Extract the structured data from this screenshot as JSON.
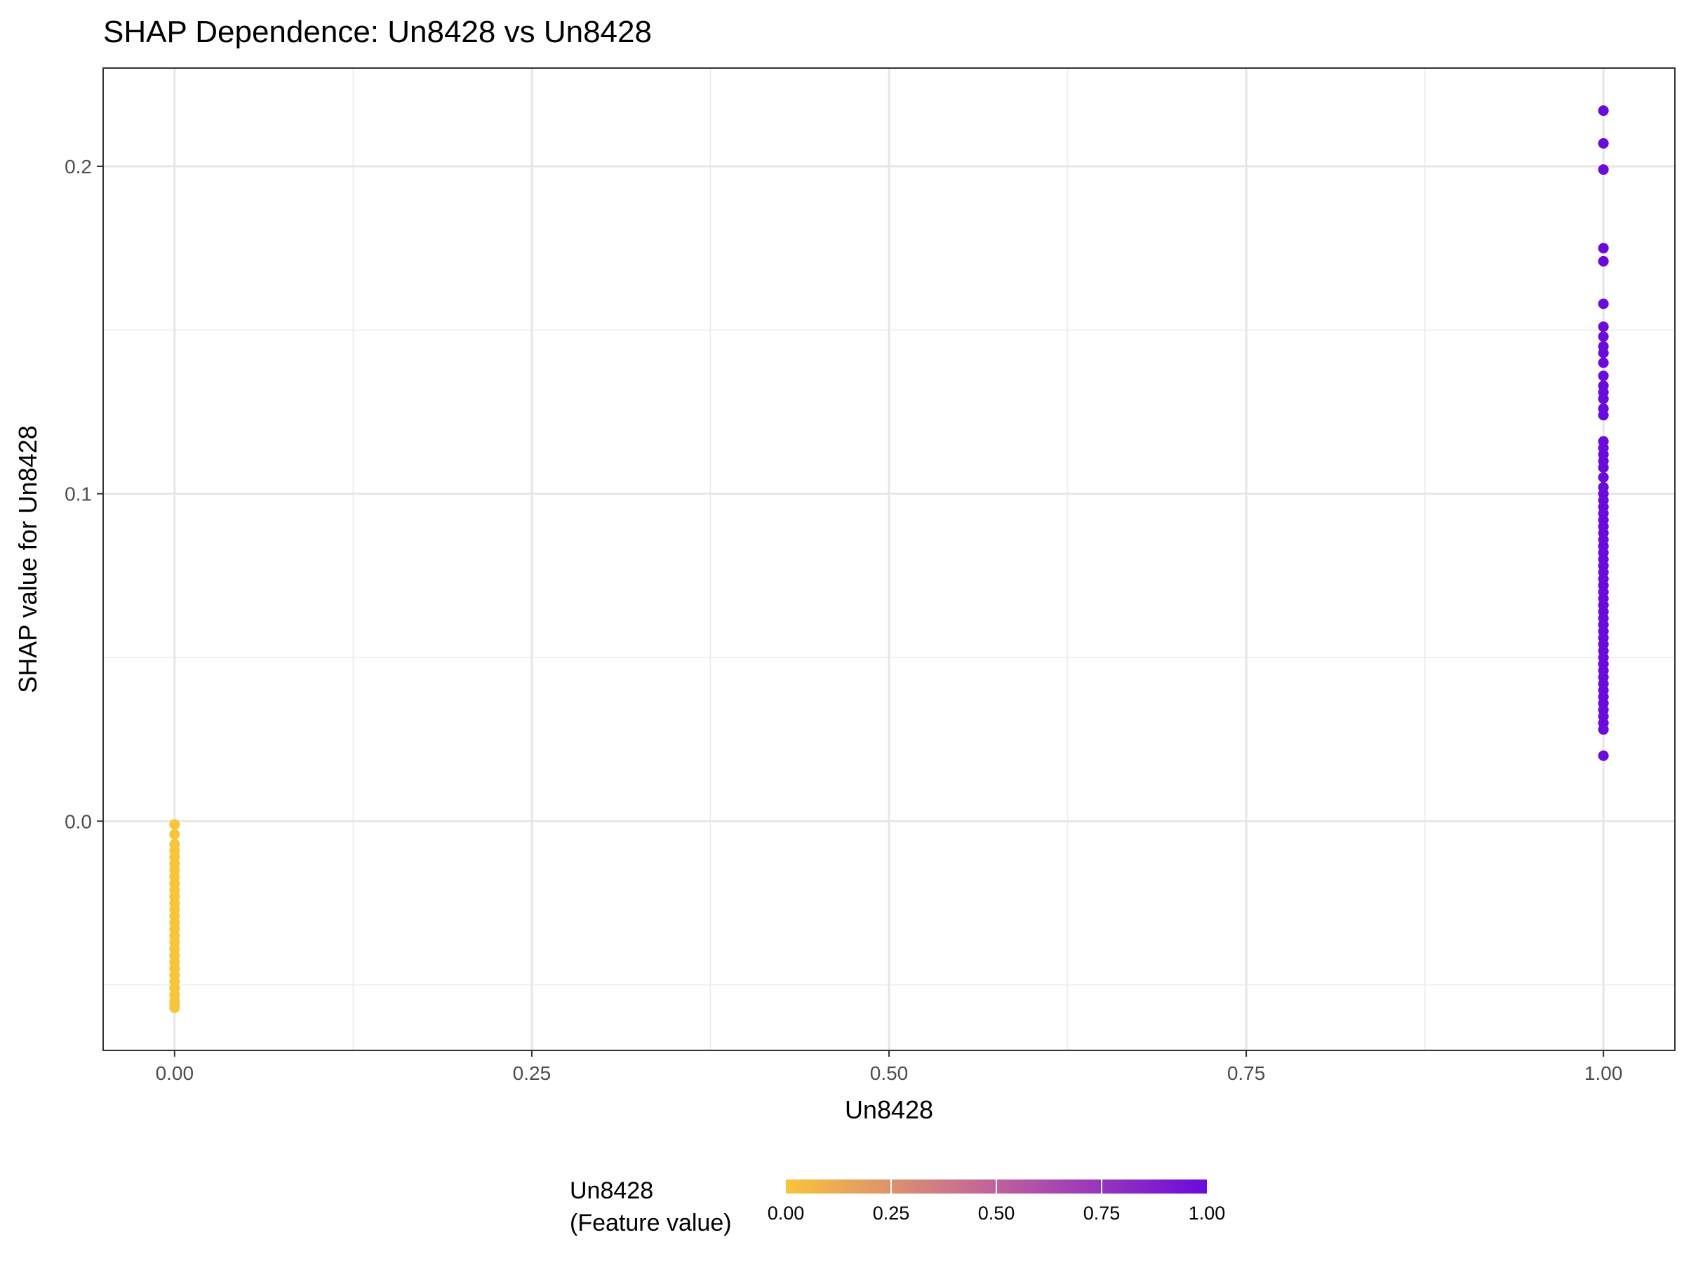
{
  "chart_data": {
    "type": "scatter",
    "title": "SHAP Dependence: Un8428 vs Un8428",
    "xlabel": "Un8428",
    "ylabel": "SHAP value for Un8428",
    "xlim": [
      -0.05,
      1.05
    ],
    "ylim": [
      -0.07,
      0.23
    ],
    "x_ticks": [
      "0.00",
      "0.25",
      "0.50",
      "0.75",
      "1.00"
    ],
    "x_tick_values": [
      0,
      0.25,
      0.5,
      0.75,
      1.0
    ],
    "y_ticks": [
      "0.0",
      "0.1",
      "0.2"
    ],
    "y_tick_values": [
      0,
      0.1,
      0.2
    ],
    "grid": true,
    "color_scale": {
      "low": "#F8C43A",
      "mid": "#D98A7A",
      "high": "#6A0ADB"
    },
    "legend": {
      "title_line1": "Un8428",
      "title_line2": "(Feature value)",
      "ticks": [
        "0.00",
        "0.25",
        "0.50",
        "0.75",
        "1.00"
      ],
      "placement": "bottom"
    },
    "series": [
      {
        "x": 0,
        "values": [
          -0.001,
          -0.004,
          -0.007,
          -0.009,
          -0.011,
          -0.013,
          -0.015,
          -0.017,
          -0.019,
          -0.021,
          -0.023,
          -0.025,
          -0.027,
          -0.029,
          -0.031,
          -0.033,
          -0.035,
          -0.037,
          -0.039,
          -0.041,
          -0.043,
          -0.045,
          -0.047,
          -0.049,
          -0.051,
          -0.053,
          -0.055,
          -0.056,
          -0.057
        ]
      },
      {
        "x": 1,
        "values": [
          0.217,
          0.207,
          0.199,
          0.175,
          0.171,
          0.158,
          0.151,
          0.148,
          0.145,
          0.143,
          0.14,
          0.136,
          0.133,
          0.131,
          0.129,
          0.126,
          0.124,
          0.116,
          0.114,
          0.112,
          0.11,
          0.108,
          0.105,
          0.102,
          0.1,
          0.098,
          0.096,
          0.094,
          0.092,
          0.09,
          0.088,
          0.086,
          0.084,
          0.082,
          0.08,
          0.078,
          0.076,
          0.074,
          0.072,
          0.07,
          0.068,
          0.066,
          0.064,
          0.062,
          0.06,
          0.058,
          0.056,
          0.054,
          0.052,
          0.05,
          0.048,
          0.046,
          0.044,
          0.042,
          0.04,
          0.038,
          0.036,
          0.034,
          0.032,
          0.03,
          0.028,
          0.02
        ]
      }
    ]
  }
}
